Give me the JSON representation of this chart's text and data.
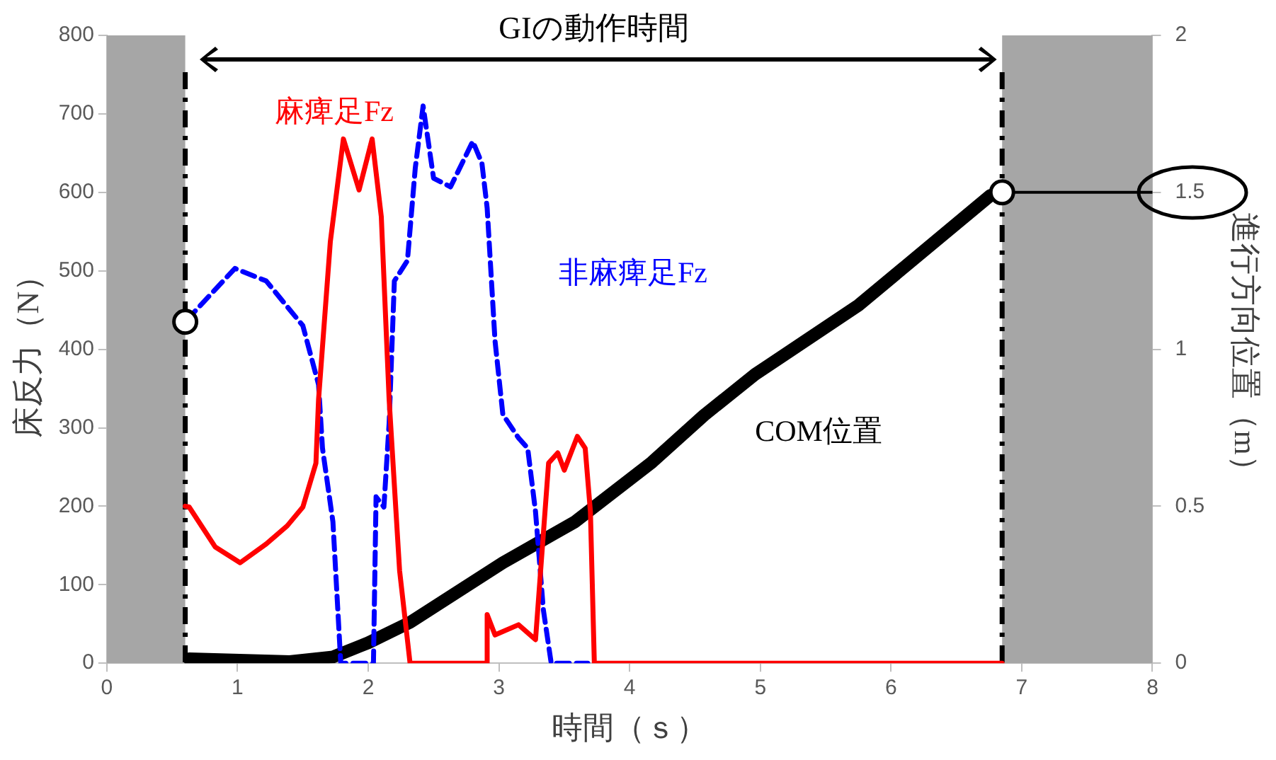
{
  "chart_data": {
    "type": "line",
    "xlabel": "時間（ｓ）",
    "ylabel": "床反力（N）",
    "y2label": "進行方向位置（m）",
    "xlim": [
      0,
      8
    ],
    "xticks": [
      0,
      1,
      2,
      3,
      4,
      5,
      6,
      7,
      8
    ],
    "ylim": [
      0,
      800
    ],
    "yticks": [
      0,
      100,
      200,
      300,
      400,
      500,
      600,
      700,
      800
    ],
    "y2lim": [
      0,
      2
    ],
    "y2ticks": [
      0,
      0.5,
      1,
      1.5,
      2
    ],
    "grid": false,
    "legend": false,
    "series": [
      {
        "name": "麻痺足Fz",
        "color": "#ff0000",
        "line_style": "solid",
        "marker": "none",
        "x": [
          0.6,
          0.63,
          0.83,
          1.02,
          1.22,
          1.38,
          1.5,
          1.6,
          1.62,
          1.71,
          1.81,
          1.93,
          2.03,
          2.1,
          2.16,
          2.24,
          2.32,
          2.9,
          2.91,
          2.97,
          3.15,
          3.28,
          3.38,
          3.45,
          3.5,
          3.6,
          3.66,
          3.7,
          3.73,
          6.85
        ],
        "values": [
          200,
          199,
          148,
          128,
          152,
          175,
          199,
          255,
          336,
          537,
          668,
          603,
          668,
          569,
          336,
          118,
          0,
          0,
          62,
          36,
          49,
          30,
          255,
          268,
          246,
          289,
          274,
          193,
          0,
          0
        ]
      },
      {
        "name": "非麻痺足Fz",
        "color": "#0000ff",
        "line_style": "dashed",
        "marker": "none",
        "x": [
          0.61,
          0.98,
          1.22,
          1.5,
          1.62,
          1.65,
          1.73,
          1.79,
          2.04,
          2.06,
          2.12,
          2.16,
          2.2,
          2.3,
          2.36,
          2.42,
          2.5,
          2.63,
          2.8,
          2.87,
          2.91,
          2.97,
          3.03,
          3.15,
          3.22,
          3.28,
          3.34,
          3.4,
          3.68
        ],
        "values": [
          437,
          503,
          487,
          430,
          355,
          274,
          180,
          0,
          0,
          212,
          199,
          306,
          487,
          513,
          631,
          710,
          618,
          607,
          665,
          637,
          580,
          411,
          317,
          287,
          274,
          193,
          68,
          0,
          0
        ]
      },
      {
        "name": "COM位置",
        "color": "#000000",
        "axis": "y2",
        "line_style": "solid",
        "marker": "none",
        "x": [
          0.63,
          1.4,
          1.73,
          2.0,
          2.32,
          3.03,
          3.58,
          4.17,
          4.57,
          4.96,
          5.75,
          6.76,
          6.85
        ],
        "values": [
          0.014,
          0.005,
          0.02,
          0.065,
          0.13,
          0.32,
          0.45,
          0.64,
          0.79,
          0.92,
          1.14,
          1.49,
          1.5
        ]
      },
      {
        "color": "#000000",
        "axis": "y2",
        "line_style": "solid",
        "marker": "none",
        "x": [
          6.85,
          8
        ],
        "values": [
          1.5,
          1.5
        ]
      },
      {
        "type": "scatter",
        "color": "#000000",
        "marker": "circle",
        "x": [
          0.6
        ],
        "values": [
          435
        ]
      },
      {
        "type": "scatter",
        "color": "#000000",
        "axis": "y2",
        "marker": "circle",
        "x": [
          6.85
        ],
        "values": [
          1.5
        ]
      }
    ],
    "bands": [
      {
        "axis": "x",
        "from": 0,
        "to": 0.6,
        "color": "#a6a6a6"
      },
      {
        "axis": "x",
        "from": 6.85,
        "to": 8,
        "color": "#a6a6a6"
      }
    ],
    "ref_lines": [
      {
        "axis": "x",
        "value": 0.6,
        "color": "#000000",
        "line_style": "dashed"
      },
      {
        "axis": "x",
        "value": 6.85,
        "color": "#000000",
        "line_style": "dashed"
      }
    ],
    "annotations": [
      "GIの動作時間"
    ]
  }
}
